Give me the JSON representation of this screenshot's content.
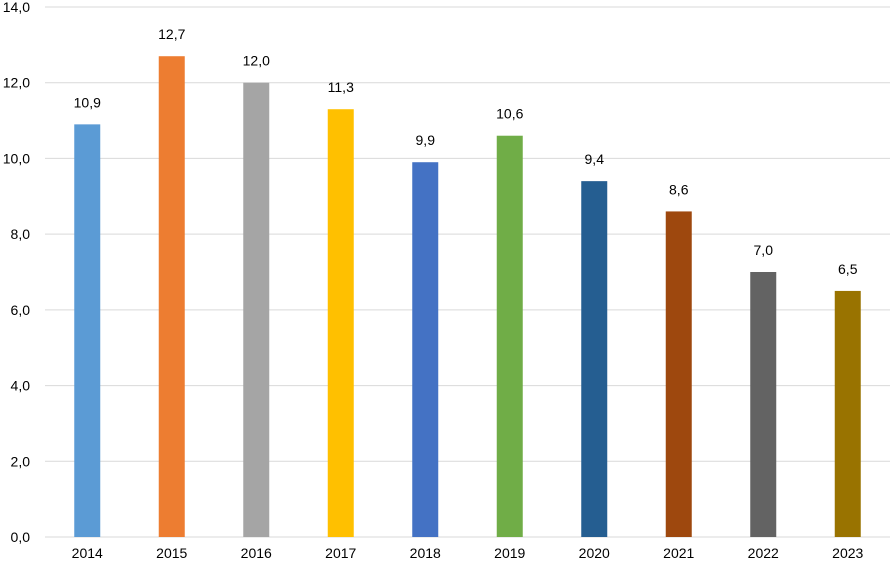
{
  "chart_data": {
    "type": "bar",
    "title": "",
    "xlabel": "",
    "ylabel": "",
    "ylim": [
      0,
      14
    ],
    "ytick_step": 2,
    "categories": [
      "2014",
      "2015",
      "2016",
      "2017",
      "2018",
      "2019",
      "2020",
      "2021",
      "2022",
      "2023"
    ],
    "values": [
      10.9,
      12.7,
      12.0,
      11.3,
      9.9,
      10.6,
      9.4,
      8.6,
      7.0,
      6.5
    ],
    "bar_colors": [
      "#5b9bd5",
      "#ed7d31",
      "#a5a5a5",
      "#ffc000",
      "#4472c4",
      "#70ad47",
      "#255e91",
      "#9e480e",
      "#636363",
      "#997300"
    ],
    "grid": true,
    "legend": "none",
    "decimal_separator": ","
  }
}
